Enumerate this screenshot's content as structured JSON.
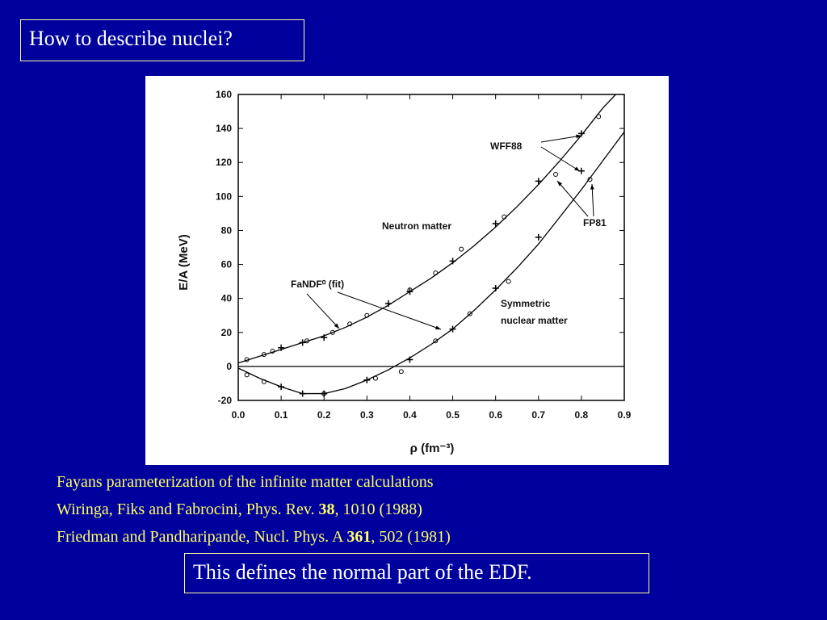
{
  "slide": {
    "title": "How to describe nuclei?",
    "references": [
      {
        "before": "Fayans parameterization of the infinite matter calculations"
      },
      {
        "before": "Wiringa, Fiks and Fabrocini, Phys. Rev. ",
        "bold": "38",
        "after": ", 1010 (1988)"
      },
      {
        "before": "Friedman and Pandharipande, Nucl. Phys. A ",
        "bold": "361",
        "after": ", 502 (1981)"
      }
    ],
    "conclusion": "This defines the normal part of the EDF."
  },
  "chart_data": {
    "type": "line",
    "xlabel": "ρ (fm⁻³)",
    "ylabel": "E/A (MeV)",
    "xlim": [
      0,
      0.9
    ],
    "ylim": [
      -20,
      160
    ],
    "xticks": [
      {
        "value": 0,
        "label": "0.0"
      },
      0.1,
      0.2,
      0.3,
      0.4,
      0.5,
      0.6,
      0.7,
      0.8,
      0.9
    ],
    "yticks": [
      -20,
      0,
      20,
      40,
      60,
      80,
      100,
      120,
      140,
      160
    ],
    "color": "#000000",
    "annotations": [
      "WFF88",
      "FP81",
      "Neutron matter",
      "FaNDF⁰ (fit)",
      "Symmetric",
      "nuclear matter"
    ],
    "series": [
      {
        "marker": "line",
        "x": [
          0,
          0.05,
          0.1,
          0.15,
          0.2,
          0.25,
          0.3,
          0.35,
          0.4,
          0.45,
          0.5,
          0.55,
          0.6,
          0.65,
          0.7,
          0.75,
          0.8,
          0.85,
          0.88
        ],
        "values": [
          2,
          6,
          10,
          14,
          18,
          23,
          29,
          36,
          44,
          52,
          61,
          71,
          82,
          94,
          107,
          121,
          136,
          152,
          160
        ]
      },
      {
        "marker": "line",
        "x": [
          0,
          0.05,
          0.1,
          0.15,
          0.2,
          0.25,
          0.3,
          0.35,
          0.4,
          0.45,
          0.5,
          0.55,
          0.6,
          0.65,
          0.7,
          0.75,
          0.8,
          0.85,
          0.9
        ],
        "values": [
          -1,
          -7,
          -12,
          -16,
          -16,
          -13,
          -8,
          -2,
          5,
          13,
          22,
          33,
          45,
          58,
          72,
          88,
          104,
          121,
          138
        ]
      },
      {
        "marker": "plus",
        "x": [
          0.1,
          0.15,
          0.2,
          0.35,
          0.4,
          0.5,
          0.6,
          0.7,
          0.8,
          0.1,
          0.15,
          0.2,
          0.3,
          0.4,
          0.5,
          0.6,
          0.7,
          0.8
        ],
        "values": [
          11,
          14,
          17,
          37,
          44,
          62,
          84,
          109,
          137,
          -12,
          -16,
          -16,
          -8,
          4,
          22,
          46,
          76,
          115
        ]
      },
      {
        "marker": "circle",
        "x": [
          0.02,
          0.06,
          0.08,
          0.16,
          0.22,
          0.26,
          0.3,
          0.4,
          0.46,
          0.52,
          0.62,
          0.74,
          0.84,
          0.02,
          0.06,
          0.2,
          0.32,
          0.38,
          0.46,
          0.54,
          0.63,
          0.82
        ],
        "values": [
          4,
          7,
          9,
          15,
          20,
          25,
          30,
          45,
          55,
          69,
          88,
          113,
          147,
          -5,
          -9,
          -16,
          -7,
          -3,
          15,
          31,
          50,
          110
        ]
      }
    ]
  }
}
